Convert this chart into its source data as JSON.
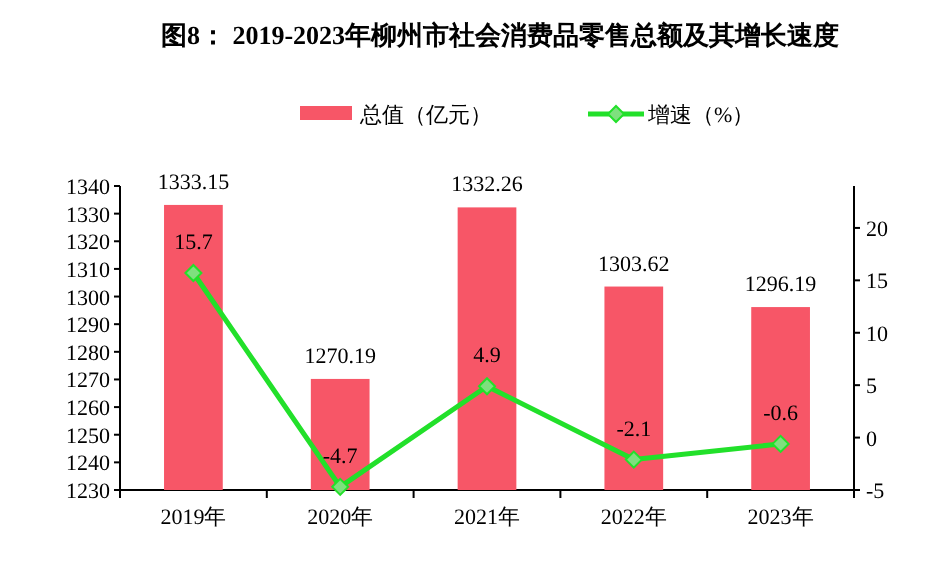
{
  "chart_data": {
    "type": "bar",
    "title": "图8：  2019-2023年柳州市社会消费品零售总额及其增长速度",
    "categories": [
      "2019年",
      "2020年",
      "2021年",
      "2022年",
      "2023年"
    ],
    "series": [
      {
        "name": "总值（亿元）",
        "color": "#f75667",
        "values": [
          1333.15,
          1270.19,
          1332.26,
          1303.62,
          1296.19
        ]
      },
      {
        "name": "增速（%）",
        "type": "line",
        "axis": "y2",
        "color": "#22e02a",
        "marker": "diamond",
        "values": [
          15.7,
          -4.7,
          4.9,
          -2.1,
          -0.6
        ]
      }
    ],
    "ylim": [
      1230,
      1340
    ],
    "yticks": [
      1230,
      1240,
      1250,
      1260,
      1270,
      1280,
      1290,
      1300,
      1310,
      1320,
      1330,
      1340
    ],
    "y2lim": [
      -5,
      24
    ],
    "y2ticks": [
      -5,
      0,
      5,
      10,
      15,
      20
    ],
    "data_labels": true,
    "legend": "top",
    "grid": false
  }
}
